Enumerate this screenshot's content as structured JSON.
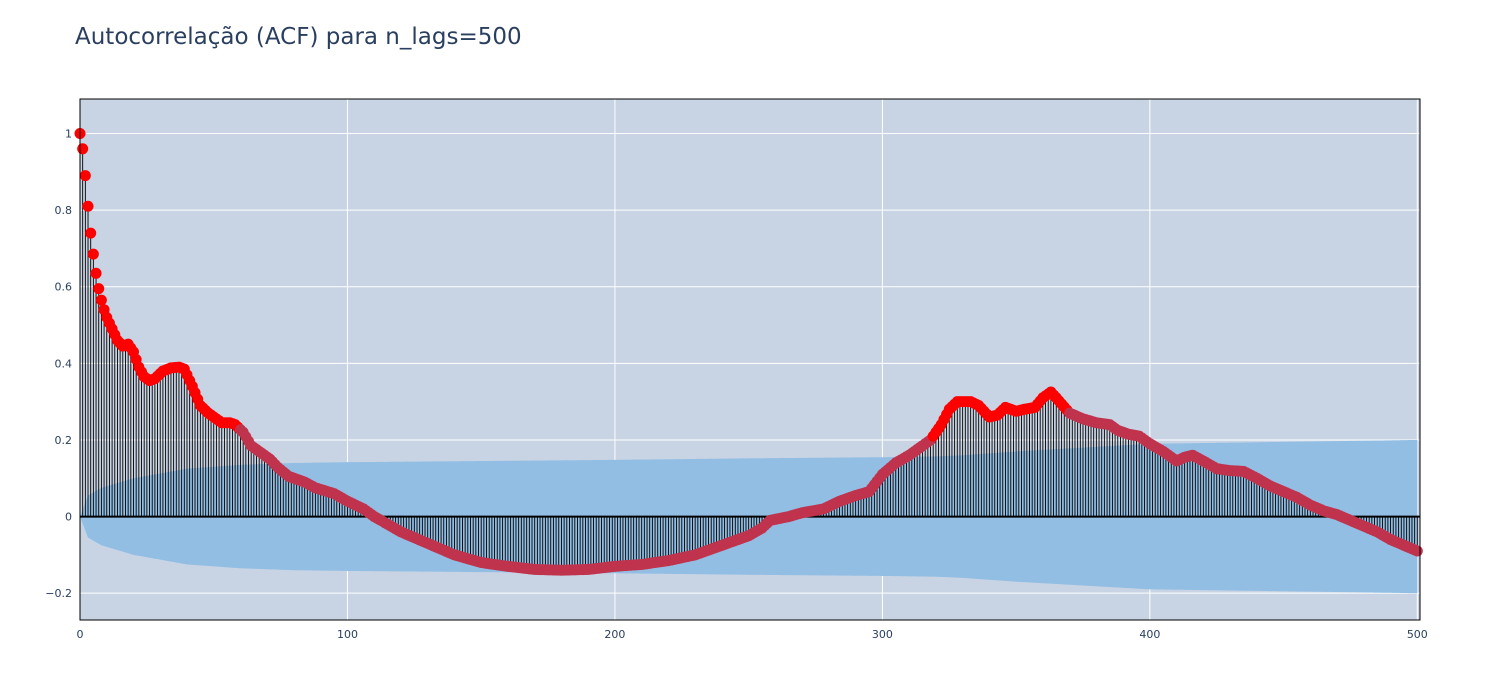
{
  "chart_data": {
    "type": "acf",
    "title": "Autocorrelação (ACF) para n_lags=500",
    "xlim": [
      0,
      501
    ],
    "ylim": [
      -0.27,
      1.09
    ],
    "x_ticks": [
      0,
      100,
      200,
      300,
      400,
      500
    ],
    "x_tick_labels": [
      "0",
      "100",
      "200",
      "300",
      "400",
      "500"
    ],
    "y_ticks": [
      -0.2,
      0,
      0.2,
      0.4,
      0.6,
      0.8,
      1
    ],
    "y_tick_labels": [
      "−0.2",
      "0",
      "0.2",
      "0.4",
      "0.6",
      "0.8",
      "1"
    ],
    "grid": true,
    "n_lags": 500,
    "acf_keypoints": [
      [
        0,
        1
      ],
      [
        1,
        0.96
      ],
      [
        2,
        0.89
      ],
      [
        3,
        0.81
      ],
      [
        4,
        0.74
      ],
      [
        5,
        0.685
      ],
      [
        6,
        0.635
      ],
      [
        7,
        0.595
      ],
      [
        8,
        0.565
      ],
      [
        9,
        0.54
      ],
      [
        10,
        0.52
      ],
      [
        12,
        0.49
      ],
      [
        14,
        0.46
      ],
      [
        16,
        0.445
      ],
      [
        18,
        0.45
      ],
      [
        20,
        0.43
      ],
      [
        22,
        0.39
      ],
      [
        24,
        0.365
      ],
      [
        26,
        0.355
      ],
      [
        28,
        0.36
      ],
      [
        31,
        0.38
      ],
      [
        34,
        0.388
      ],
      [
        37,
        0.39
      ],
      [
        39,
        0.385
      ],
      [
        42,
        0.34
      ],
      [
        45,
        0.29
      ],
      [
        48,
        0.27
      ],
      [
        51,
        0.255
      ],
      [
        53,
        0.245
      ],
      [
        56,
        0.245
      ],
      [
        58,
        0.24
      ],
      [
        61,
        0.22
      ],
      [
        64,
        0.185
      ],
      [
        67,
        0.17
      ],
      [
        71,
        0.15
      ],
      [
        74,
        0.128
      ],
      [
        78,
        0.105
      ],
      [
        84,
        0.09
      ],
      [
        88,
        0.075
      ],
      [
        95,
        0.06
      ],
      [
        100,
        0.04
      ],
      [
        106,
        0.02
      ],
      [
        110,
        0
      ],
      [
        115,
        -0.02
      ],
      [
        120,
        -0.04
      ],
      [
        130,
        -0.07
      ],
      [
        140,
        -0.1
      ],
      [
        150,
        -0.12
      ],
      [
        160,
        -0.13
      ],
      [
        170,
        -0.138
      ],
      [
        180,
        -0.14
      ],
      [
        190,
        -0.138
      ],
      [
        200,
        -0.13
      ],
      [
        210,
        -0.125
      ],
      [
        220,
        -0.115
      ],
      [
        230,
        -0.1
      ],
      [
        240,
        -0.075
      ],
      [
        250,
        -0.05
      ],
      [
        255,
        -0.03
      ],
      [
        258,
        -0.01
      ],
      [
        265,
        0
      ],
      [
        270,
        0.01
      ],
      [
        278,
        0.02
      ],
      [
        284,
        0.04
      ],
      [
        290,
        0.055
      ],
      [
        295,
        0.065
      ],
      [
        300,
        0.11
      ],
      [
        305,
        0.14
      ],
      [
        310,
        0.16
      ],
      [
        315,
        0.185
      ],
      [
        318,
        0.2
      ],
      [
        322,
        0.24
      ],
      [
        325,
        0.28
      ],
      [
        328,
        0.3
      ],
      [
        333,
        0.3
      ],
      [
        336,
        0.29
      ],
      [
        340,
        0.26
      ],
      [
        343,
        0.265
      ],
      [
        346,
        0.285
      ],
      [
        350,
        0.275
      ],
      [
        353,
        0.28
      ],
      [
        357,
        0.285
      ],
      [
        360,
        0.31
      ],
      [
        363,
        0.325
      ],
      [
        365,
        0.31
      ],
      [
        370,
        0.27
      ],
      [
        375,
        0.255
      ],
      [
        380,
        0.245
      ],
      [
        385,
        0.24
      ],
      [
        388,
        0.225
      ],
      [
        392,
        0.215
      ],
      [
        396,
        0.21
      ],
      [
        400,
        0.19
      ],
      [
        405,
        0.17
      ],
      [
        410,
        0.145
      ],
      [
        413,
        0.155
      ],
      [
        416,
        0.16
      ],
      [
        420,
        0.145
      ],
      [
        425,
        0.125
      ],
      [
        430,
        0.12
      ],
      [
        435,
        0.118
      ],
      [
        440,
        0.1
      ],
      [
        445,
        0.08
      ],
      [
        450,
        0.065
      ],
      [
        455,
        0.05
      ],
      [
        460,
        0.03
      ],
      [
        465,
        0.015
      ],
      [
        470,
        0.005
      ],
      [
        475,
        -0.01
      ],
      [
        480,
        -0.025
      ],
      [
        485,
        -0.04
      ],
      [
        490,
        -0.06
      ],
      [
        495,
        -0.075
      ],
      [
        500,
        -0.09
      ],
      [
        501,
        -0.1
      ]
    ],
    "confidence_band": [
      [
        0,
        0
      ],
      [
        3,
        0.055
      ],
      [
        8,
        0.075
      ],
      [
        20,
        0.1
      ],
      [
        40,
        0.125
      ],
      [
        50,
        0.13
      ],
      [
        60,
        0.135
      ],
      [
        80,
        0.14
      ],
      [
        100,
        0.142
      ],
      [
        150,
        0.145
      ],
      [
        200,
        0.148
      ],
      [
        250,
        0.152
      ],
      [
        300,
        0.155
      ],
      [
        320,
        0.157
      ],
      [
        330,
        0.16
      ],
      [
        350,
        0.17
      ],
      [
        400,
        0.19
      ],
      [
        450,
        0.195
      ],
      [
        500,
        0.2
      ]
    ],
    "colors": {
      "plot_bg": "#c8d4e3",
      "band": "#93bee3",
      "stem": "#000000",
      "marker_peak": "#ff0000",
      "marker_body": "#c0334d",
      "zero_line": "#000000",
      "grid": "#ffffff",
      "tick_text": "#2a3f5f"
    }
  }
}
